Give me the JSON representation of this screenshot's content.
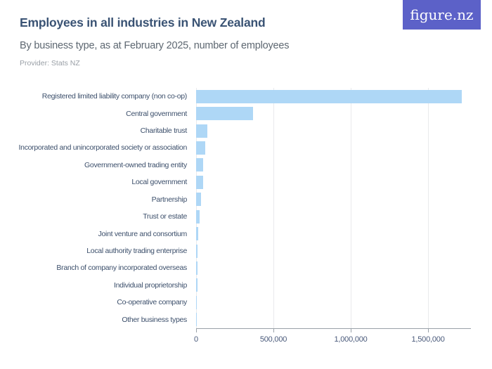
{
  "header": {
    "title": "Employees in all industries in New Zealand",
    "subtitle": "By business type, as at February 2025, number of employees",
    "provider": "Provider: Stats NZ",
    "logo_text": "figure.nz"
  },
  "colors": {
    "bar_fill": "#aed7f6",
    "logo_bg": "#5c61c8",
    "title_text": "#3a5374",
    "subtitle_text": "#5d6771",
    "provider_text": "#999fa6",
    "category_label_text": "#3c4f6b",
    "tick_label_text": "#49597a",
    "gridline": "#e9eaec",
    "axis_line": "#99a1a8"
  },
  "chart_data": {
    "type": "bar",
    "orientation": "horizontal",
    "title": "Employees in all industries in New Zealand",
    "subtitle": "By business type, as at February 2025, number of employees",
    "xlabel": "",
    "ylabel": "",
    "grid": "vertical-only",
    "legend": "none",
    "categories": [
      "Registered limited liability company (non co-op)",
      "Central government",
      "Charitable trust",
      "Incorporated and unincorporated society or association",
      "Government-owned trading entity",
      "Local government",
      "Partnership",
      "Trust or estate",
      "Joint venture and consortium",
      "Local authority trading enterprise",
      "Branch of company incorporated overseas",
      "Individual proprietorship",
      "Co-operative company",
      "Other business types"
    ],
    "values": [
      1720000,
      370000,
      72000,
      57000,
      45000,
      44000,
      32000,
      23000,
      12000,
      11000,
      10000,
      9000,
      4500,
      600
    ],
    "xlim": [
      0,
      1777000
    ],
    "x_ticks": [
      {
        "value": 0,
        "label": "0"
      },
      {
        "value": 500000,
        "label": "500,000"
      },
      {
        "value": 1000000,
        "label": "1,000,000"
      },
      {
        "value": 1500000,
        "label": "1,500,000"
      }
    ]
  }
}
